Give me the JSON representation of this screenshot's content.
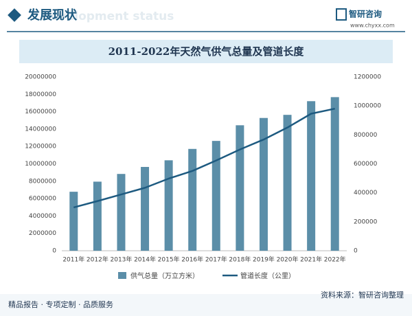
{
  "header": {
    "title": "发展现状",
    "subtitle": "Development status",
    "brand": "智研咨询",
    "website": "www.chyxx.com"
  },
  "footer": {
    "slogan": "精品报告 · 专项定制 · 品质服务",
    "source": "资料来源：智研咨询整理"
  },
  "chart_data": {
    "type": "combo",
    "title": "2011-2022年天然气供气总量及管道长度",
    "categories": [
      "2011年",
      "2012年",
      "2013年",
      "2014年",
      "2015年",
      "2016年",
      "2017年",
      "2018年",
      "2019年",
      "2020年",
      "2021年",
      "2022年"
    ],
    "series": [
      {
        "name": "供气总量（万立方米）",
        "type": "bar",
        "color": "#5b8ea8",
        "values": [
          6788000,
          7950000,
          8838000,
          9644000,
          10408000,
          11717000,
          12638000,
          14439000,
          15279000,
          15637000,
          17211000,
          17677000
        ]
      },
      {
        "name": "管道长度（公里）",
        "type": "line",
        "axis": "y2",
        "color": "#1d5a80",
        "values": [
          298972,
          342752,
          388473,
          434571,
          498087,
          551031,
          623253,
          698970,
          767946,
          850552,
          946200,
          981000
        ]
      }
    ],
    "ylim": [
      0,
      20000000
    ],
    "yticks": [
      0,
      2000000,
      4000000,
      6000000,
      8000000,
      10000000,
      12000000,
      14000000,
      16000000,
      18000000,
      20000000
    ],
    "y2lim": [
      0,
      1200000
    ],
    "y2ticks": [
      0,
      200000,
      400000,
      600000,
      800000,
      1000000,
      1200000
    ],
    "legend": "bottom"
  }
}
